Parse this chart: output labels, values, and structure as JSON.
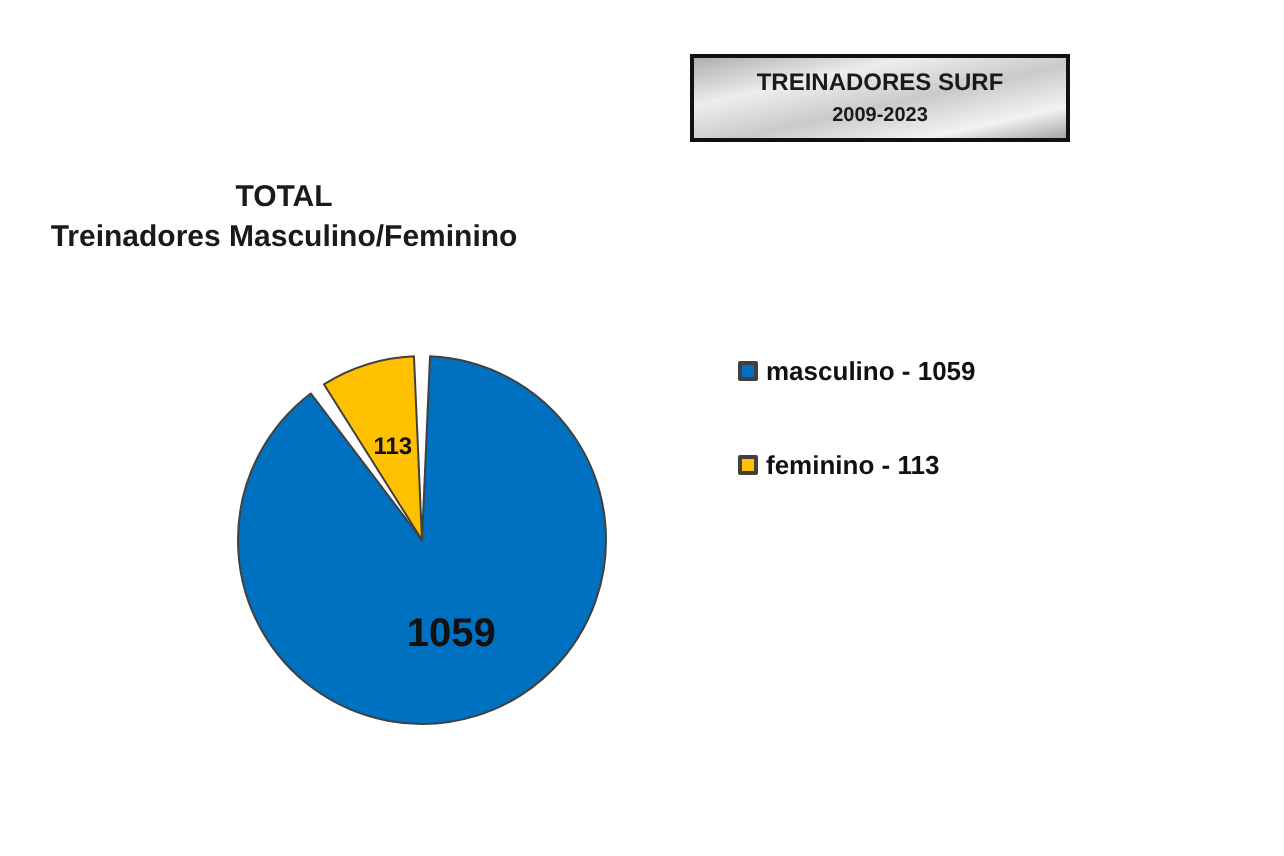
{
  "chart_data": {
    "type": "pie",
    "title": "TREINADORES SURF",
    "subtitle": "2009-2023",
    "annotations": [
      "TOTAL",
      "Treinadores Masculino/Feminino"
    ],
    "categories": [
      "masculino - 1059",
      "feminino - 113"
    ],
    "values": [
      1059,
      113
    ],
    "colors": [
      "#0070c0",
      "#ffc000"
    ],
    "data_labels": true,
    "legend": "right"
  }
}
